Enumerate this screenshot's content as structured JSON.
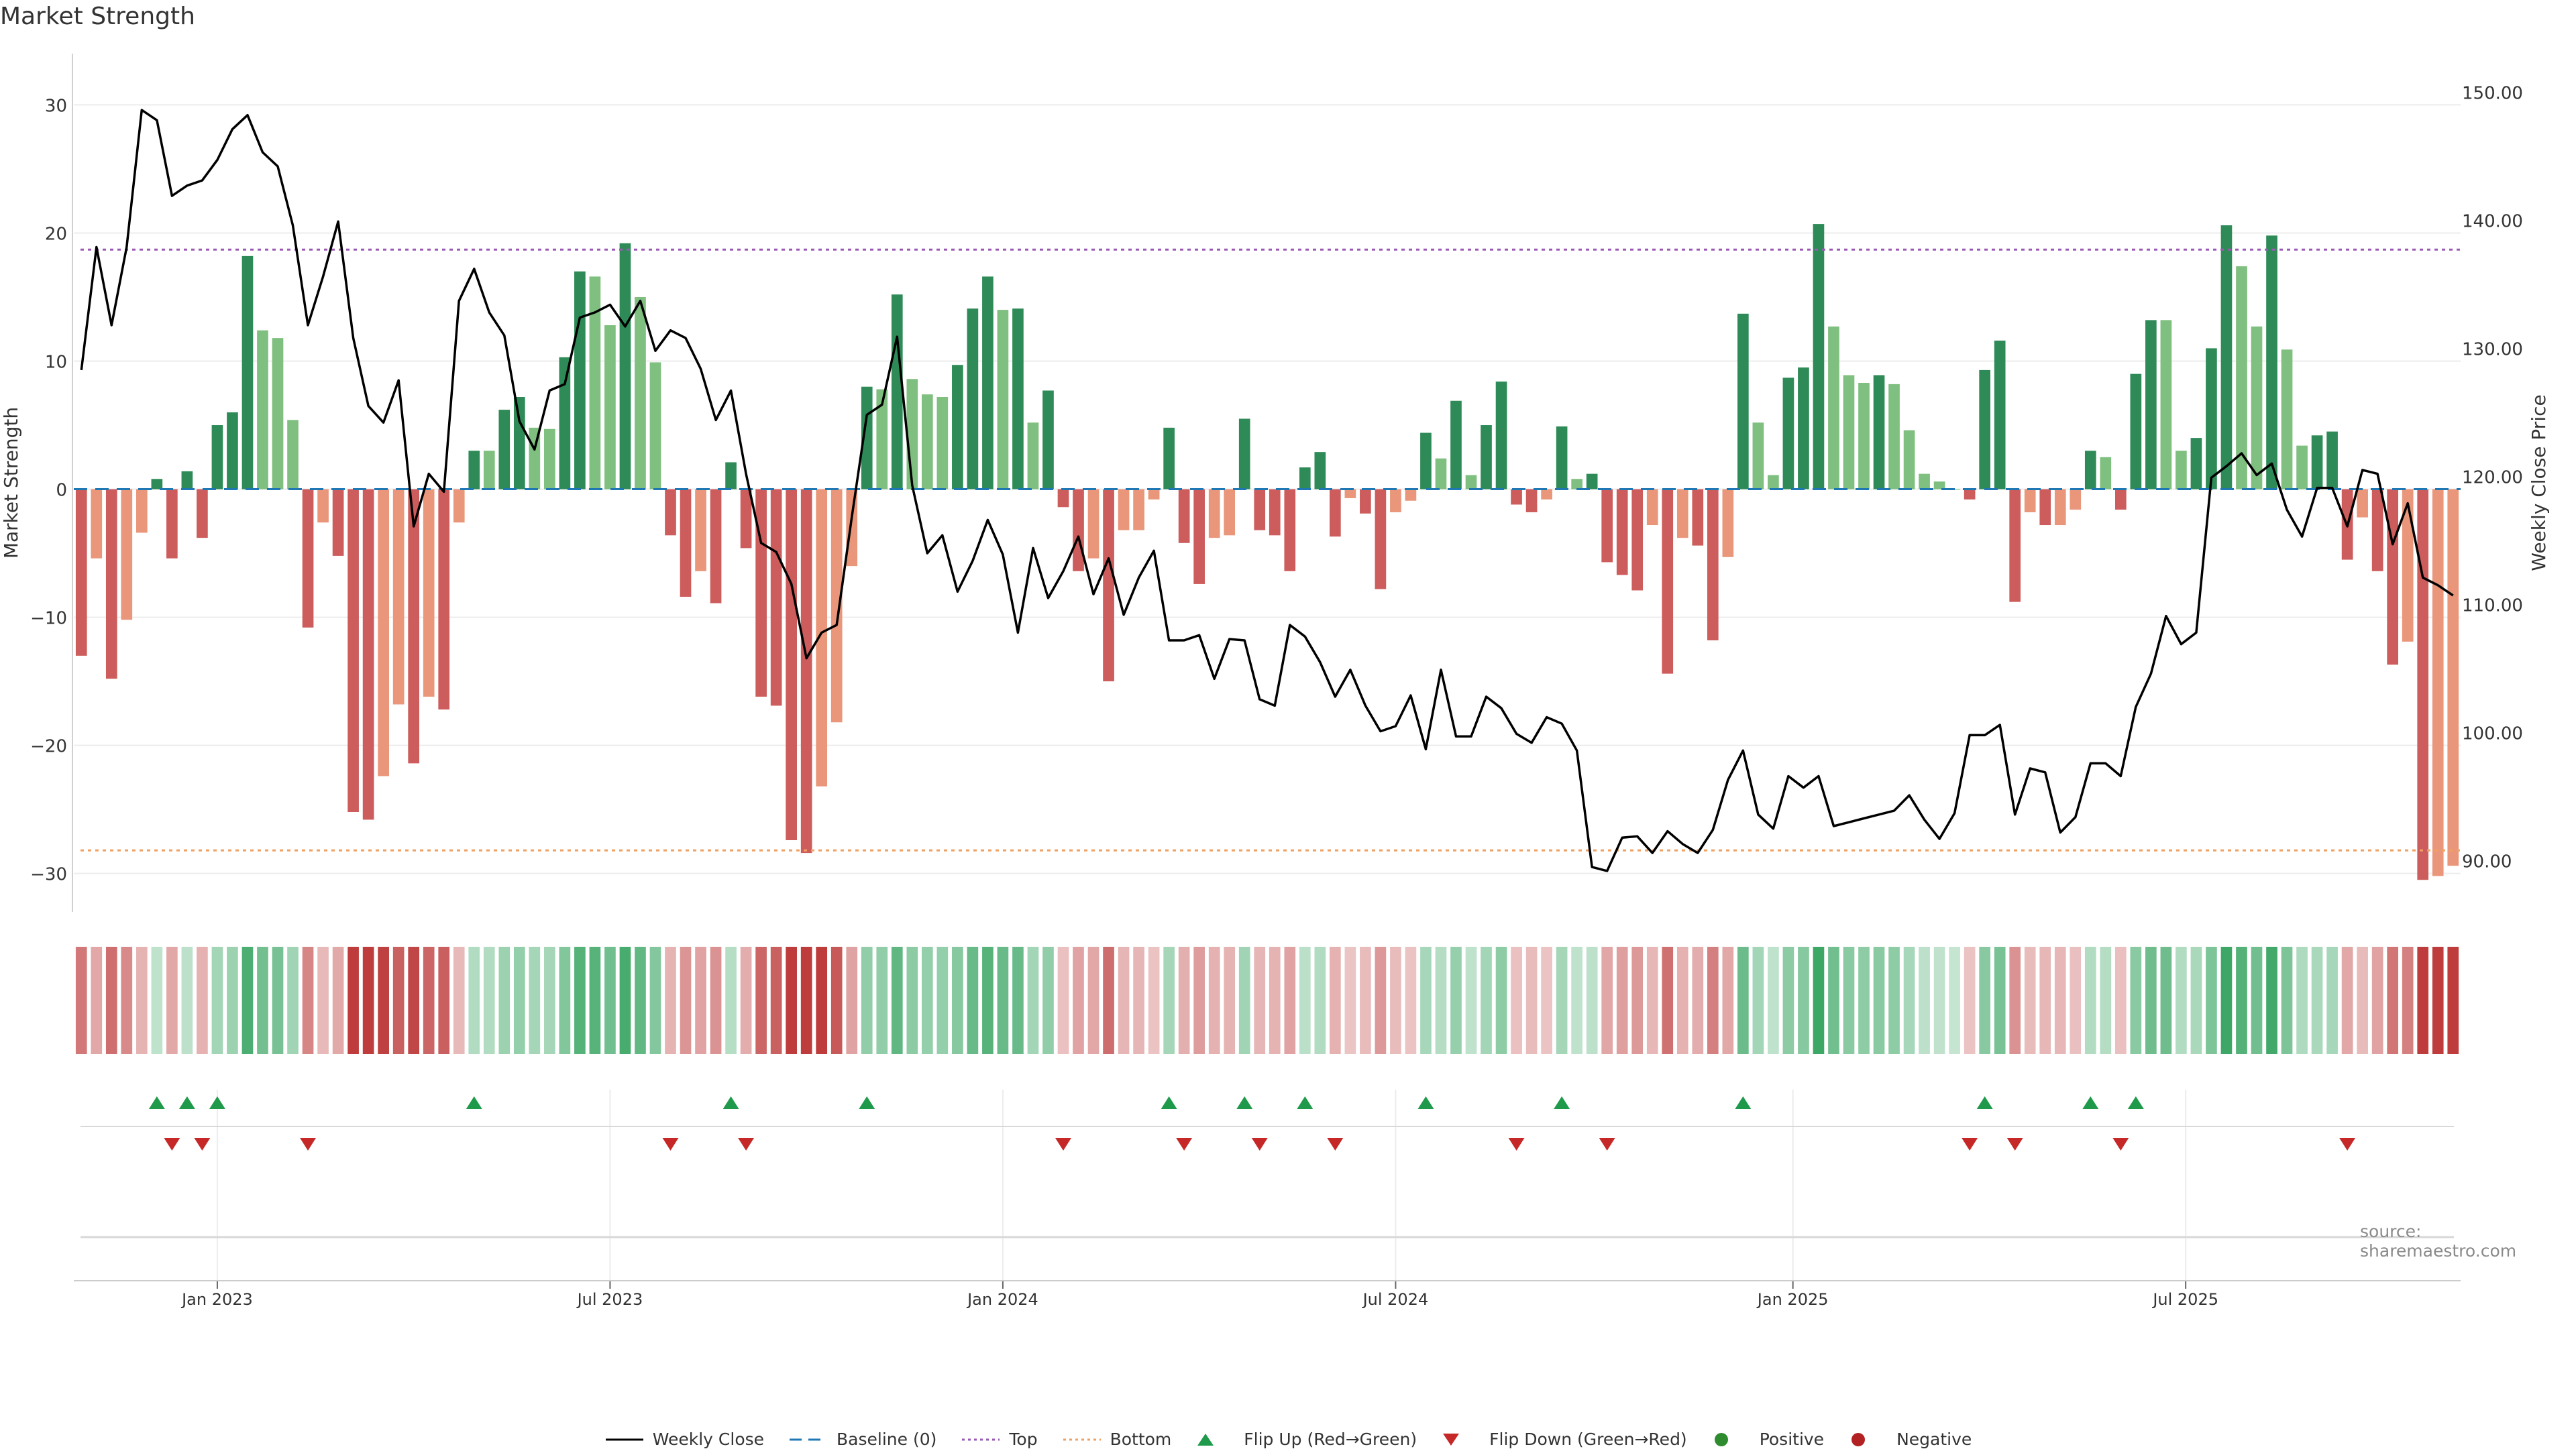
{
  "chart_data": {
    "title": "Market Strength",
    "type": "bar",
    "ylabel_left": "Market Strength",
    "ylabel_right": "Weekly Close Price",
    "ylim_left": [
      -33,
      34
    ],
    "ylim_right": [
      86.0,
      153.0
    ],
    "yticks_left": [
      30,
      20,
      10,
      0,
      -10,
      -20,
      -30
    ],
    "yticks_left_labels": [
      "30",
      "20",
      "10",
      "0",
      "−10",
      "−20",
      "−30"
    ],
    "yticks_right": [
      150,
      140,
      130,
      120,
      110,
      100,
      90
    ],
    "yticks_right_labels": [
      "150.00",
      "140.00",
      "130.00",
      "120.00",
      "110.00",
      "100.00",
      "90.00"
    ],
    "x_ticks": [
      {
        "label": "Jan 2023",
        "week": 9.5
      },
      {
        "label": "Jul 2023",
        "week": 35.5
      },
      {
        "label": "Jan 2024",
        "week": 61.5
      },
      {
        "label": "Jul 2024",
        "week": 87.5
      },
      {
        "label": "Jan 2025",
        "week": 113.8
      },
      {
        "label": "Jul 2025",
        "week": 139.8
      }
    ],
    "top_line": 18.7,
    "bottom_line": -28.2,
    "baseline": 0,
    "strength": [
      -13,
      -5.4,
      -14.8,
      -10.2,
      -3.4,
      0.8,
      -5.4,
      1.4,
      -3.8,
      5,
      6,
      18.2,
      12.4,
      11.8,
      5.4,
      -10.8,
      -2.6,
      -5.2,
      -25.2,
      -25.8,
      -22.4,
      -16.8,
      -21.4,
      -16.2,
      -17.2,
      -2.6,
      3,
      3,
      6.2,
      7.2,
      4.8,
      4.7,
      10.3,
      17,
      16.6,
      12.8,
      19.2,
      15,
      9.9,
      -3.6,
      -8.4,
      -6.4,
      -8.9,
      2.1,
      -4.6,
      -16.2,
      -16.9,
      -27.4,
      -28.4,
      -23.2,
      -18.2,
      -6,
      8,
      7.8,
      15.2,
      8.6,
      7.4,
      7.2,
      9.7,
      14.1,
      16.6,
      14,
      14.1,
      5.2,
      7.7,
      -1.4,
      -6.4,
      -5.4,
      -15,
      -3.2,
      -3.2,
      -0.8,
      4.8,
      -4.2,
      -7.4,
      -3.8,
      -3.6,
      5.5,
      -3.2,
      -3.6,
      -6.4,
      1.7,
      2.9,
      -3.7,
      -0.7,
      -1.9,
      -7.8,
      -1.8,
      -0.9,
      4.4,
      2.4,
      6.9,
      1.1,
      5,
      8.4,
      -1.2,
      -1.8,
      -0.8,
      4.9,
      0.8,
      1.2,
      -5.7,
      -6.7,
      -7.9,
      -2.8,
      -14.4,
      -3.8,
      -4.4,
      -11.8,
      -5.3,
      13.7,
      5.2,
      1.1,
      8.7,
      9.5,
      20.7,
      12.7,
      8.9,
      8.3,
      8.9,
      8.2,
      4.6,
      1.2,
      0.6,
      0,
      -0.8,
      9.3,
      11.6,
      -8.8,
      -1.8,
      -2.8,
      -2.8,
      -1.6,
      3,
      2.5,
      -1.6,
      9,
      13.2,
      13.2,
      3,
      4,
      11,
      20.6,
      17.4,
      12.7,
      19.8,
      10.9,
      3.4,
      4.2,
      4.5,
      -5.5,
      -2.2,
      -6.4,
      -13.7,
      -11.9,
      -30.5,
      -30.2,
      -29.4
    ],
    "weekly_close": [
      128.3,
      137.9,
      131.8,
      137.9,
      148.6,
      147.8,
      141.9,
      142.7,
      143.1,
      144.7,
      147.1,
      148.2,
      145.3,
      144.2,
      139.6,
      131.8,
      135.6,
      139.9,
      130.8,
      125.5,
      124.2,
      127.5,
      116.1,
      120.2,
      118.8,
      133.7,
      136.2,
      132.8,
      131.0,
      124.3,
      122.1,
      126.7,
      127.2,
      132.4,
      132.8,
      133.4,
      131.7,
      133.7,
      129.8,
      131.4,
      130.8,
      128.4,
      124.4,
      126.7,
      120.2,
      114.8,
      114.1,
      111.6,
      105.8,
      107.8,
      108.4,
      116.8,
      124.8,
      125.6,
      130.9,
      119.3,
      114.0,
      115.4,
      111.0,
      113.4,
      116.6,
      113.9,
      107.8,
      114.4,
      110.5,
      112.6,
      115.3,
      110.8,
      113.6,
      109.2,
      112.1,
      114.2,
      107.2,
      107.2,
      107.6,
      104.2,
      107.3,
      107.2,
      102.6,
      102.1,
      108.4,
      107.5,
      105.5,
      102.8,
      104.9,
      102.1,
      100.1,
      100.5,
      102.9,
      98.7,
      104.9,
      99.7,
      99.7,
      102.8,
      101.9,
      99.9,
      99.2,
      101.2,
      100.7,
      98.6,
      89.5,
      89.2,
      91.8,
      91.9,
      90.6,
      92.3,
      91.3,
      90.6,
      92.4,
      96.3,
      98.6,
      93.6,
      92.5,
      96.6,
      95.7,
      96.6,
      92.7,
      93.0,
      93.3,
      93.6,
      93.9,
      95.1,
      93.2,
      91.7,
      93.7,
      99.8,
      99.8,
      100.6,
      93.6,
      97.2,
      96.9,
      92.2,
      93.4,
      97.6,
      97.6,
      96.6,
      102.0,
      104.6,
      109.1,
      106.9,
      107.8,
      119.9,
      120.8,
      121.8,
      120.1,
      121.0,
      117.4,
      115.3,
      119.1,
      119.1,
      116.1,
      120.5,
      120.2,
      114.7,
      117.9,
      112.1,
      111.5,
      110.7
    ]
  },
  "legend": [
    {
      "label": "Weekly Close",
      "icon": "line-solid",
      "color": "#000000"
    },
    {
      "label": "Baseline (0)",
      "icon": "line-dashed",
      "color": "#1f77b4"
    },
    {
      "label": "Top",
      "icon": "line-dotted",
      "color": "#9b59b6"
    },
    {
      "label": "Bottom",
      "icon": "line-dotted",
      "color": "#f0a060"
    },
    {
      "label": "Flip Up (Red→Green)",
      "icon": "triangle-up",
      "color": "#1e9a4a"
    },
    {
      "label": "Flip Down (Green→Red)",
      "icon": "triangle-down",
      "color": "#c62828"
    },
    {
      "label": "Positive",
      "icon": "circle",
      "color": "#2e8b2e"
    },
    {
      "label": "Negative",
      "icon": "circle",
      "color": "#b22222"
    }
  ],
  "source": "source: sharemaestro.com",
  "colors": {
    "pos_strong": "#2e8b57",
    "pos_weak": "#7fbf7f",
    "neg_strong": "#cd5c5c",
    "neg_weak": "#e9967a",
    "line": "#000000",
    "top": "#9b59b6",
    "bottom": "#f0a060",
    "flip_up": "#1e9a4a",
    "flip_down": "#c62828"
  }
}
